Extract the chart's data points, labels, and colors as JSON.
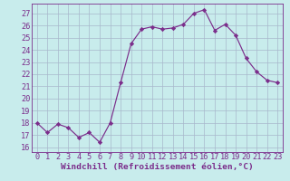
{
  "x": [
    0,
    1,
    2,
    3,
    4,
    5,
    6,
    7,
    8,
    9,
    10,
    11,
    12,
    13,
    14,
    15,
    16,
    17,
    18,
    19,
    20,
    21,
    22,
    23
  ],
  "y": [
    18.0,
    17.2,
    17.9,
    17.6,
    16.8,
    17.2,
    16.4,
    18.0,
    21.3,
    24.5,
    25.7,
    25.9,
    25.7,
    25.8,
    26.1,
    27.0,
    27.3,
    25.6,
    26.1,
    25.2,
    23.3,
    22.2,
    21.5,
    21.3
  ],
  "line_color": "#7b2d8b",
  "marker": "D",
  "marker_size": 2.2,
  "bg_color": "#c8ecec",
  "grid_color": "#a8b8cc",
  "xlabel": "Windchill (Refroidissement éolien,°C)",
  "text_color": "#7b2d8b",
  "ylabel_ticks": [
    16,
    17,
    18,
    19,
    20,
    21,
    22,
    23,
    24,
    25,
    26,
    27
  ],
  "xlim": [
    -0.5,
    23.5
  ],
  "ylim": [
    15.6,
    27.8
  ],
  "xlabel_fontsize": 6.8,
  "tick_fontsize": 6.2
}
